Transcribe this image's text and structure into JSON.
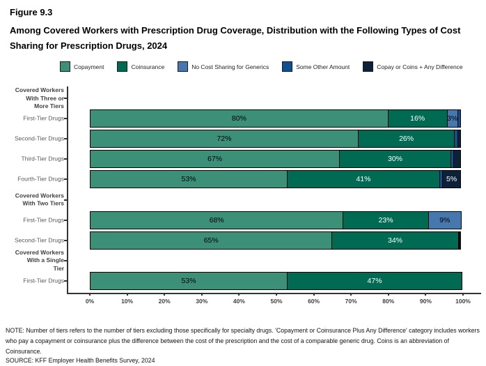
{
  "title": "Figure 9.3",
  "subtitle": "Among Covered Workers with Prescription Drug Coverage, Distribution with the Following Types of Cost Sharing for Prescription Drugs, 2024",
  "legend": [
    {
      "name": "copayment-swatch",
      "label": "Copayment",
      "color": "#3D9078"
    },
    {
      "name": "coinsurance-swatch",
      "label": "Coinsurance",
      "color": "#006B52"
    },
    {
      "name": "no-cost-sharing-swatch",
      "label": "No Cost Sharing for Generics",
      "color": "#4678AE"
    },
    {
      "name": "some-other-amount-swatch",
      "label": "Some Other Amount",
      "color": "#0E5191"
    },
    {
      "name": "copay-or-coins-swatch",
      "label": "Copay or Coins + Any Difference",
      "color": "#0B2239"
    }
  ],
  "chart_data": {
    "type": "bar",
    "orientation": "horizontal",
    "stacked": true,
    "grid": false,
    "xlim": [
      0,
      100
    ],
    "x_ticks": [
      "0%",
      "10%",
      "20%",
      "30%",
      "40%",
      "50%",
      "60%",
      "70%",
      "80%",
      "90%",
      "100%"
    ],
    "series": [
      {
        "name": "Copayment",
        "color": "#3D9078",
        "label_color": "#000000"
      },
      {
        "name": "Coinsurance",
        "color": "#006B52",
        "label_color": "#ffffff"
      },
      {
        "name": "No Cost Sharing for Generics",
        "color": "#4678AE",
        "label_color": "#000000"
      },
      {
        "name": "Some Other Amount",
        "color": "#0E5191",
        "label_color": "#ffffff"
      },
      {
        "name": "Copay or Coins + Any Difference",
        "color": "#0B2239",
        "label_color": "#ffffff"
      }
    ],
    "rows": [
      {
        "type": "group",
        "label_lines": [
          "Covered Workers",
          "With Three or",
          "More Tiers"
        ]
      },
      {
        "type": "bar",
        "label_lines": [
          "First-Tier Drugs"
        ],
        "segments": [
          {
            "series": 0,
            "value": 80,
            "label": "80%"
          },
          {
            "series": 1,
            "value": 16,
            "label": "16%"
          },
          {
            "series": 2,
            "value": 3,
            "label": "3%"
          },
          {
            "series": 3,
            "value": 1,
            "label": ""
          }
        ]
      },
      {
        "type": "bar",
        "label_lines": [
          "Second-Tier Drugs"
        ],
        "segments": [
          {
            "series": 0,
            "value": 72,
            "label": "72%"
          },
          {
            "series": 1,
            "value": 26,
            "label": "26%"
          },
          {
            "series": 3,
            "value": 1,
            "label": ""
          },
          {
            "series": 4,
            "value": 1,
            "label": ""
          }
        ]
      },
      {
        "type": "bar",
        "label_lines": [
          "Third-Tier Drugs"
        ],
        "segments": [
          {
            "series": 0,
            "value": 67,
            "label": "67%"
          },
          {
            "series": 1,
            "value": 30,
            "label": "30%"
          },
          {
            "series": 3,
            "value": 1,
            "label": ""
          },
          {
            "series": 4,
            "value": 2,
            "label": ""
          }
        ]
      },
      {
        "type": "bar",
        "label_lines": [
          "Fourth-Tier Drugs"
        ],
        "segments": [
          {
            "series": 0,
            "value": 53,
            "label": "53%"
          },
          {
            "series": 1,
            "value": 41,
            "label": "41%"
          },
          {
            "series": 3,
            "value": 1,
            "label": ""
          },
          {
            "series": 4,
            "value": 5,
            "label": "5%"
          }
        ]
      },
      {
        "type": "group",
        "label_lines": [
          "Covered Workers",
          "With Two Tiers"
        ]
      },
      {
        "type": "bar",
        "label_lines": [
          "First-Tier Drugs"
        ],
        "segments": [
          {
            "series": 0,
            "value": 68,
            "label": "68%"
          },
          {
            "series": 1,
            "value": 23,
            "label": "23%"
          },
          {
            "series": 2,
            "value": 9,
            "label": "9%"
          }
        ]
      },
      {
        "type": "bar",
        "label_lines": [
          "Second-Tier Drugs"
        ],
        "segments": [
          {
            "series": 0,
            "value": 65,
            "label": "65%"
          },
          {
            "series": 1,
            "value": 34,
            "label": "34%"
          },
          {
            "series": 3,
            "value": 0.5,
            "label": ""
          },
          {
            "series": 4,
            "value": 0.5,
            "label": ""
          }
        ]
      },
      {
        "type": "group",
        "label_lines": [
          "Covered Workers",
          "With a Single",
          "Tier"
        ]
      },
      {
        "type": "bar",
        "label_lines": [
          "First-Tier Drugs"
        ],
        "segments": [
          {
            "series": 0,
            "value": 53,
            "label": "53%"
          },
          {
            "series": 1,
            "value": 47,
            "label": "47%"
          }
        ]
      }
    ]
  },
  "note": "NOTE: Number of tiers refers to the number of tiers excluding those specifically for specialty drugs. 'Copayment or Coinsurance Plus Any Difference' category includes workers who pay a copayment or coinsurance plus the difference between the cost of the prescription and the cost of a comparable generic drug.  Coins is an abbreviation of Coinsurance.",
  "source": "SOURCE: KFF Employer Health Benefits Survey, 2024"
}
